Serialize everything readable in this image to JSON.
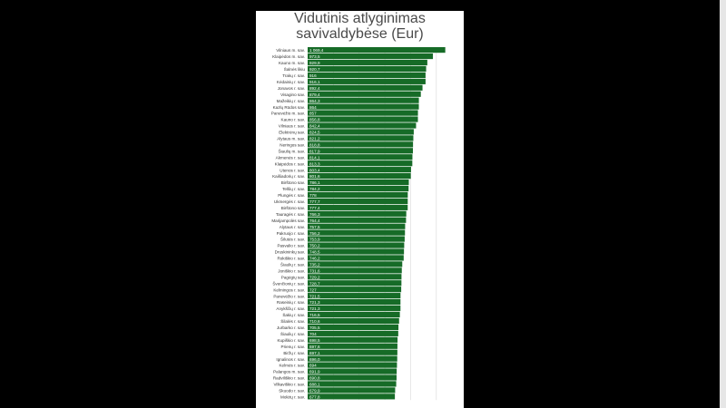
{
  "colors": {
    "bar": "#166b27",
    "background": "#000000",
    "panel": "#ffffff",
    "grid": "#d9d9d9",
    "title": "#4a4a4a",
    "category_text": "#333333",
    "value_text": "#ffffff"
  },
  "chart_data": {
    "type": "bar",
    "orientation": "horizontal",
    "title": [
      "Vidutinis atlyginimas",
      "savivaldybėse (Eur)"
    ],
    "xlim": [
      0,
      1100
    ],
    "grid": true,
    "categories": [
      "Vilniaus m. sav.",
      "Klaipėdos m. sav.",
      "Kauno m. sav.",
      "Šalnės likiu",
      "Trakų r. sav.",
      "Kėdainių r. sav.",
      "Jonavos r. sav.",
      "Visagino sav.",
      "Mažeikių r. sav.",
      "Kazlų Rūdos sav.",
      "Panevėžio m. sav.",
      "Kauno r. sav.",
      "Vilniaus r. sav.",
      "Elektrėnų sav.",
      "Alytaus m. sav.",
      "Neringos sav.",
      "Šiaulių m. sav.",
      "Akmenės r. sav.",
      "Klaipėdos r. sav.",
      "Utenos r. sav.",
      "Kaišiadorių r. sav.",
      "Birštono sav.",
      "Telšių r. sav.",
      "Plungės r. sav.",
      "Ukmergės r. sav.",
      "Birštono sav.",
      "Tauragės r. sav.",
      "Marijampolės sav.",
      "Alytaus r. sav.",
      "Pakruojo r. sav.",
      "Šilutės r. sav.",
      "Pasvalio r. sav.",
      "Druskininkų sav.",
      "Rokiškio r. sav.",
      "Šiaulių r. sav.",
      "Joniškio r. sav.",
      "Pagėgių sav.",
      "Švenčionių r. sav.",
      "Kelmingos r. sav.",
      "Panevėžio r. sav.",
      "Raseinių r. sav.",
      "Anykščių r. sav.",
      "Šakių r. sav.",
      "Šilalės r. sav.",
      "Jurbarko r. sav.",
      "Šiaulių r. sav.",
      "Kupiškio r. sav.",
      "Prienų r. sav.",
      "Biržų r. sav.",
      "Ignalinos r. sav.",
      "Kelmės r. sav.",
      "Palangos m. sav.",
      "Radviliškio r. sav.",
      "Vilkaviškio r. sav.",
      "Skuodo r. sav.",
      "Molėtų r. sav."
    ],
    "values": [
      1069.4,
      973.5,
      929.9,
      920.7,
      916,
      916.1,
      892.4,
      879.4,
      864.3,
      864,
      857,
      856.8,
      842.4,
      824.5,
      821.2,
      818.8,
      817.9,
      814.1,
      813.3,
      803.4,
      801.6,
      786.1,
      784.2,
      778,
      777.7,
      777.4,
      766.3,
      764.4,
      757.5,
      756.2,
      753.9,
      750.2,
      748.5,
      746.2,
      735.2,
      731.6,
      729.2,
      728.7,
      727,
      721.5,
      721.3,
      721.3,
      716.5,
      710.6,
      705.5,
      704,
      698.5,
      697.6,
      697.1,
      696.0,
      694,
      691.9,
      690.8,
      688.1,
      679.9,
      677.8
    ],
    "value_labels": [
      "1 069,4",
      "973,5",
      "929,9",
      "920,7",
      "916",
      "916,1",
      "892,4",
      "879,4",
      "864,3",
      "864",
      "857",
      "856,8",
      "842,4",
      "824,5",
      "821,2",
      "818,8",
      "817,9",
      "814,1",
      "813,3",
      "803,4",
      "801,6",
      "786,1",
      "784,2",
      "778",
      "777,7",
      "777,4",
      "766,3",
      "764,4",
      "757,5",
      "756,2",
      "753,9",
      "750,2",
      "748,5",
      "746,2",
      "735,2",
      "731,6",
      "729,2",
      "728,7",
      "727",
      "721,5",
      "721,3",
      "721,3",
      "716,5",
      "710,6",
      "705,5",
      "704",
      "698,5",
      "697,6",
      "697,1",
      "696,0",
      "694",
      "691,9",
      "690,8",
      "688,1",
      "679,9",
      "677,8"
    ]
  }
}
